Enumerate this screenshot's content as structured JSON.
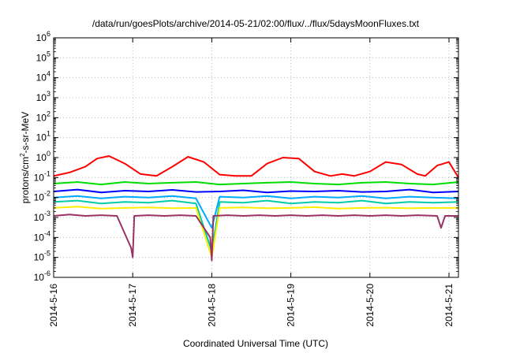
{
  "chart_data": {
    "type": "line",
    "title": "/data/run/goesPlots/archive/2014-05-21/02:00/flux/../flux/5daysMoonFluxes.txt",
    "xlabel": "Coordinated Universal Time (UTC)",
    "ylabel_parts": [
      "protons/cm",
      "2",
      "-s-sr-MeV"
    ],
    "y_scale": "log",
    "ylim_exponents": [
      -6,
      6
    ],
    "y_tick_exponents": [
      -6,
      -5,
      -4,
      -3,
      -2,
      -1,
      0,
      1,
      2,
      3,
      4,
      5,
      6
    ],
    "x_tick_labels": [
      "2014-5-16",
      "2014-5-17",
      "2014-5-18",
      "2014-5-19",
      "2014-5-20",
      "2014-5-21"
    ],
    "xlim_days": [
      0,
      5.12
    ],
    "grid": true,
    "legend": "none",
    "series": [
      {
        "color": "#ff0000",
        "x": [
          0,
          0.2,
          0.4,
          0.55,
          0.7,
          0.9,
          1.1,
          1.3,
          1.5,
          1.7,
          1.9,
          2.1,
          2.3,
          2.5,
          2.7,
          2.9,
          3.1,
          3.3,
          3.5,
          3.65,
          3.8,
          4.0,
          4.2,
          4.4,
          4.6,
          4.7,
          4.85,
          5.0,
          5.12
        ],
        "y": [
          0.12,
          0.18,
          0.35,
          0.9,
          1.2,
          0.5,
          0.15,
          0.12,
          0.35,
          1.1,
          0.6,
          0.14,
          0.12,
          0.12,
          0.5,
          1.0,
          0.9,
          0.2,
          0.12,
          0.15,
          0.12,
          0.2,
          0.6,
          0.45,
          0.15,
          0.12,
          0.4,
          0.6,
          0.1
        ]
      },
      {
        "color": "#00dd00",
        "x": [
          0,
          0.3,
          0.6,
          0.9,
          1.2,
          1.5,
          1.8,
          2.1,
          2.4,
          2.7,
          3.0,
          3.3,
          3.6,
          3.9,
          4.2,
          4.5,
          4.8,
          5.12
        ],
        "y": [
          0.05,
          0.06,
          0.045,
          0.06,
          0.05,
          0.055,
          0.06,
          0.045,
          0.05,
          0.055,
          0.06,
          0.05,
          0.045,
          0.055,
          0.06,
          0.05,
          0.045,
          0.06
        ]
      },
      {
        "color": "#0000ff",
        "x": [
          0,
          0.3,
          0.6,
          0.9,
          1.2,
          1.5,
          1.8,
          2.1,
          2.4,
          2.7,
          3.0,
          3.3,
          3.6,
          3.9,
          4.2,
          4.5,
          4.8,
          5.12
        ],
        "y": [
          0.02,
          0.025,
          0.018,
          0.022,
          0.02,
          0.024,
          0.019,
          0.02,
          0.023,
          0.018,
          0.021,
          0.02,
          0.022,
          0.019,
          0.02,
          0.025,
          0.018,
          0.02
        ]
      },
      {
        "color": "#00aaff",
        "x": [
          0,
          0.3,
          0.6,
          0.9,
          1.2,
          1.5,
          1.8,
          2.0,
          2.1,
          2.4,
          2.7,
          3.0,
          3.3,
          3.6,
          3.9,
          4.2,
          4.5,
          4.8,
          5.12
        ],
        "y": [
          0.01,
          0.012,
          0.009,
          0.011,
          0.01,
          0.012,
          0.009,
          0.0003,
          0.011,
          0.01,
          0.012,
          0.009,
          0.011,
          0.01,
          0.012,
          0.009,
          0.011,
          0.01,
          0.009
        ]
      },
      {
        "color": "#00ccaa",
        "x": [
          0,
          0.3,
          0.6,
          0.9,
          1.2,
          1.5,
          1.8,
          2.0,
          2.1,
          2.4,
          2.7,
          3.0,
          3.3,
          3.6,
          3.9,
          4.2,
          4.5,
          4.8,
          5.12
        ],
        "y": [
          0.006,
          0.007,
          0.005,
          0.006,
          0.0055,
          0.007,
          0.005,
          2e-05,
          0.006,
          0.0055,
          0.007,
          0.005,
          0.006,
          0.0055,
          0.007,
          0.005,
          0.006,
          0.0055,
          0.006
        ]
      },
      {
        "color": "#ffee00",
        "x": [
          0,
          0.3,
          0.6,
          0.9,
          1.2,
          1.5,
          1.8,
          2.0,
          2.1,
          2.4,
          2.7,
          3.0,
          3.3,
          3.6,
          3.9,
          4.2,
          4.5,
          4.8,
          5.12
        ],
        "y": [
          0.003,
          0.0035,
          0.0028,
          0.003,
          0.0032,
          0.0029,
          0.003,
          1e-05,
          0.003,
          0.0032,
          0.0029,
          0.003,
          0.0033,
          0.0028,
          0.003,
          0.0031,
          0.0029,
          0.003,
          0.003
        ]
      },
      {
        "color": "#993366",
        "x": [
          0,
          0.2,
          0.4,
          0.6,
          0.8,
          0.98,
          1.0,
          1.02,
          1.2,
          1.4,
          1.6,
          1.8,
          1.98,
          2.0,
          2.02,
          2.2,
          2.4,
          2.6,
          2.8,
          3.0,
          3.2,
          3.4,
          3.6,
          3.8,
          4.0,
          4.2,
          4.4,
          4.6,
          4.85,
          4.9,
          4.95,
          5.12
        ],
        "y": [
          0.0012,
          0.0014,
          0.0012,
          0.0013,
          0.0012,
          3e-05,
          1e-05,
          0.0012,
          0.0013,
          0.0012,
          0.0013,
          0.0012,
          0.0001,
          7e-06,
          0.0012,
          0.0013,
          0.0012,
          0.0013,
          0.0012,
          0.0013,
          0.0012,
          0.0013,
          0.0012,
          0.0013,
          0.0012,
          0.0013,
          0.0012,
          0.0013,
          0.0012,
          0.0003,
          0.0012,
          0.0012
        ]
      }
    ]
  }
}
